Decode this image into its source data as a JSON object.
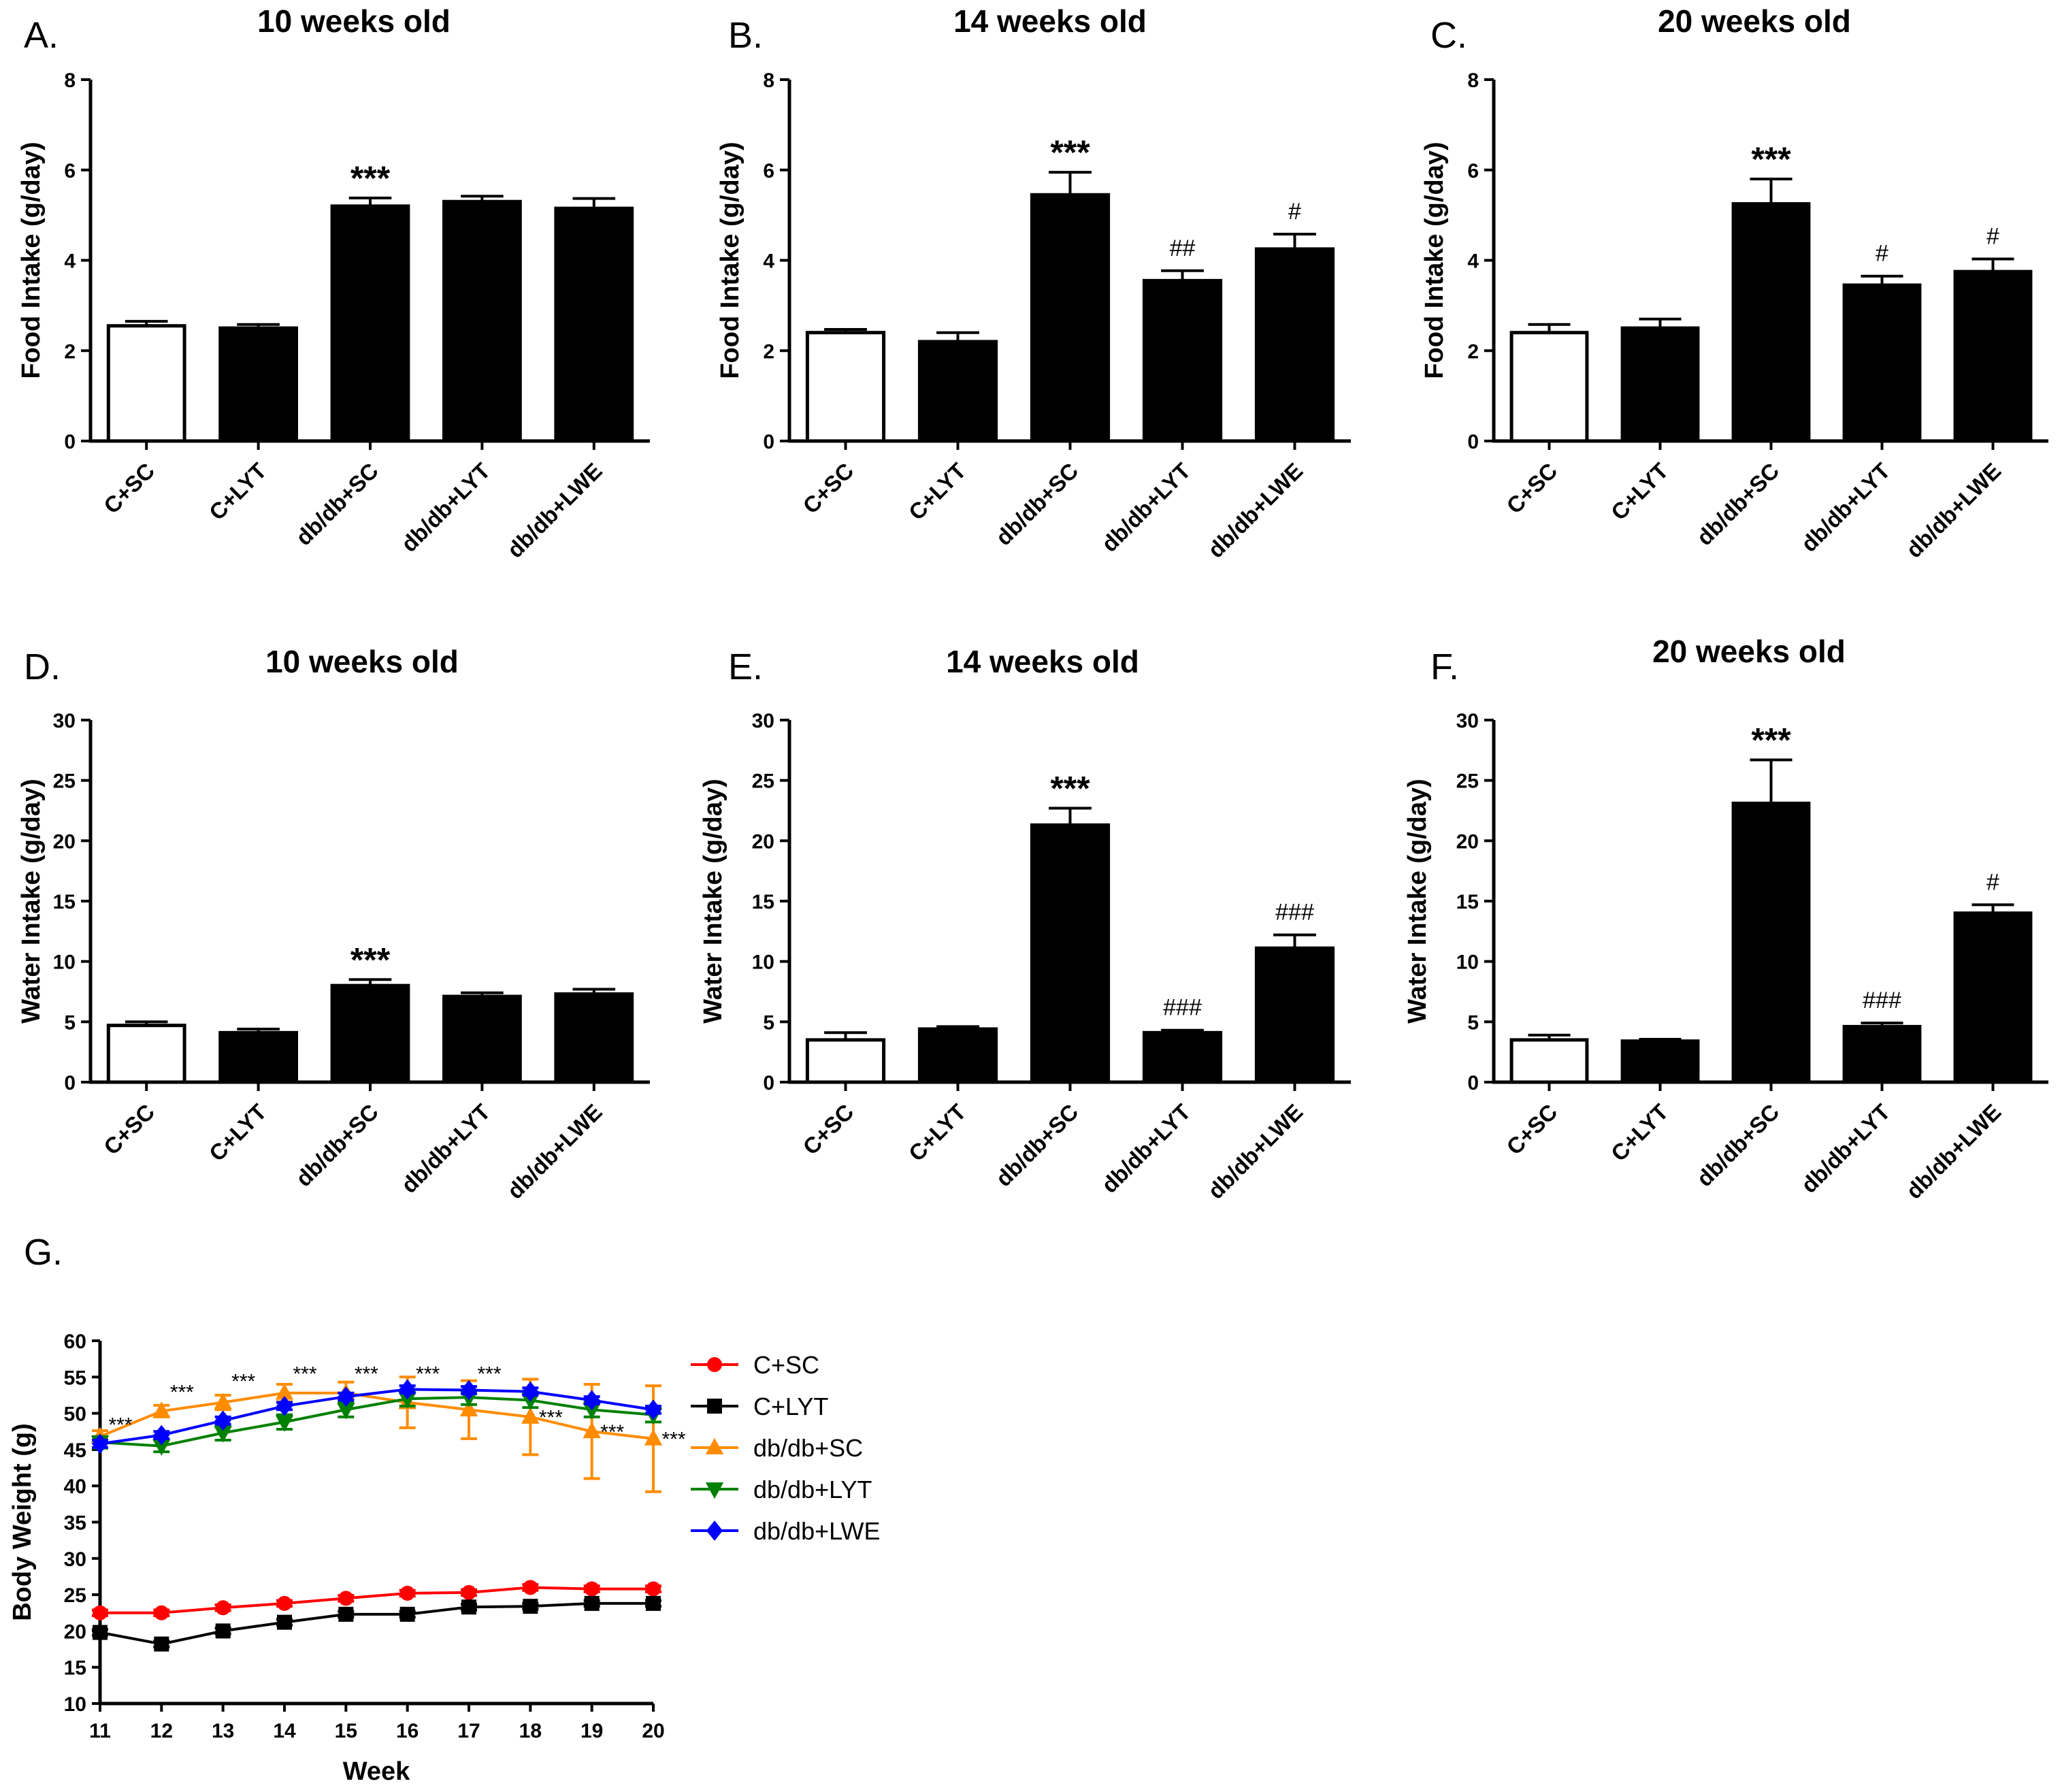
{
  "chart_data": [
    {
      "id": "A",
      "panel_label": "A.",
      "type": "bar",
      "title": "10 weeks old",
      "ylabel": "Food Intake (g/day)",
      "ylim": [
        0,
        8
      ],
      "yticks": [
        "0",
        "2",
        "4",
        "6",
        "8"
      ],
      "categories": [
        "C+SC",
        "C+LYT",
        "db/db+SC",
        "db/db+LYT",
        "db/db+LWE"
      ],
      "values": [
        2.55,
        2.5,
        5.2,
        5.3,
        5.15
      ],
      "errors": [
        0.1,
        0.08,
        0.18,
        0.12,
        0.22
      ],
      "fills": [
        "#ffffff",
        "#000000",
        "#000000",
        "#000000",
        "#000000"
      ],
      "annotations": [
        {
          "category_index": 2,
          "text": "***",
          "style": "sig"
        }
      ]
    },
    {
      "id": "B",
      "panel_label": "B.",
      "type": "bar",
      "title": "14 weeks old",
      "ylabel": "Food Intake (g/day)",
      "ylim": [
        0,
        8
      ],
      "yticks": [
        "0",
        "2",
        "4",
        "6",
        "8"
      ],
      "categories": [
        "C+SC",
        "C+LYT",
        "db/db+SC",
        "db/db+LYT",
        "db/db+LWE"
      ],
      "values": [
        2.4,
        2.2,
        5.45,
        3.55,
        4.25
      ],
      "errors": [
        0.07,
        0.2,
        0.5,
        0.22,
        0.33
      ],
      "fills": [
        "#ffffff",
        "#000000",
        "#000000",
        "#000000",
        "#000000"
      ],
      "annotations": [
        {
          "category_index": 2,
          "text": "***",
          "style": "sig"
        },
        {
          "category_index": 3,
          "text": "##",
          "style": "hash"
        },
        {
          "category_index": 4,
          "text": "#",
          "style": "hash"
        }
      ]
    },
    {
      "id": "C",
      "panel_label": "C.",
      "type": "bar",
      "title": "20 weeks old",
      "ylabel": "Food Intake (g/day)",
      "ylim": [
        0,
        8
      ],
      "yticks": [
        "0",
        "2",
        "4",
        "6",
        "8"
      ],
      "categories": [
        "C+SC",
        "C+LYT",
        "db/db+SC",
        "db/db+LYT",
        "db/db+LWE"
      ],
      "values": [
        2.4,
        2.5,
        5.25,
        3.45,
        3.75
      ],
      "errors": [
        0.18,
        0.2,
        0.55,
        0.2,
        0.28
      ],
      "fills": [
        "#ffffff",
        "#000000",
        "#000000",
        "#000000",
        "#000000"
      ],
      "annotations": [
        {
          "category_index": 2,
          "text": "***",
          "style": "sig"
        },
        {
          "category_index": 3,
          "text": "#",
          "style": "hash"
        },
        {
          "category_index": 4,
          "text": "#",
          "style": "hash"
        }
      ]
    },
    {
      "id": "D",
      "panel_label": "D.",
      "type": "bar",
      "title": "10 weeks old",
      "ylabel": "Water Intake (g/day)",
      "ylim": [
        0,
        30
      ],
      "yticks": [
        "0",
        "5",
        "10",
        "15",
        "20",
        "25",
        "30"
      ],
      "categories": [
        "C+SC",
        "C+LYT",
        "db/db+SC",
        "db/db+LYT",
        "db/db+LWE"
      ],
      "values": [
        4.7,
        4.1,
        8.0,
        7.1,
        7.3
      ],
      "errors": [
        0.3,
        0.3,
        0.5,
        0.3,
        0.4
      ],
      "fills": [
        "#ffffff",
        "#000000",
        "#000000",
        "#000000",
        "#000000"
      ],
      "annotations": [
        {
          "category_index": 2,
          "text": "***",
          "style": "sig"
        }
      ]
    },
    {
      "id": "E",
      "panel_label": "E.",
      "type": "bar",
      "title": "14 weeks old",
      "ylabel": "Water Intake (g/day)",
      "ylim": [
        0,
        30
      ],
      "yticks": [
        "0",
        "5",
        "10",
        "15",
        "20",
        "25",
        "30"
      ],
      "categories": [
        "C+SC",
        "C+LYT",
        "db/db+SC",
        "db/db+LYT",
        "db/db+LWE"
      ],
      "values": [
        3.5,
        4.4,
        21.3,
        4.1,
        11.1
      ],
      "errors": [
        0.6,
        0.2,
        1.4,
        0.2,
        1.1
      ],
      "fills": [
        "#ffffff",
        "#000000",
        "#000000",
        "#000000",
        "#000000"
      ],
      "annotations": [
        {
          "category_index": 2,
          "text": "***",
          "style": "sig"
        },
        {
          "category_index": 3,
          "text": "###",
          "style": "hash"
        },
        {
          "category_index": 4,
          "text": "###",
          "style": "hash"
        }
      ]
    },
    {
      "id": "F",
      "panel_label": "F.",
      "type": "bar",
      "title": "20 weeks old",
      "ylabel": "Water Intake (g/day)",
      "ylim": [
        0,
        30
      ],
      "yticks": [
        "0",
        "5",
        "10",
        "15",
        "20",
        "25",
        "30"
      ],
      "categories": [
        "C+SC",
        "C+LYT",
        "db/db+SC",
        "db/db+LYT",
        "db/db+LWE"
      ],
      "values": [
        3.5,
        3.4,
        23.1,
        4.6,
        14.0
      ],
      "errors": [
        0.4,
        0.15,
        3.6,
        0.3,
        0.7
      ],
      "fills": [
        "#ffffff",
        "#000000",
        "#000000",
        "#000000",
        "#000000"
      ],
      "annotations": [
        {
          "category_index": 2,
          "text": "***",
          "style": "sig"
        },
        {
          "category_index": 3,
          "text": "###",
          "style": "hash"
        },
        {
          "category_index": 4,
          "text": "#",
          "style": "hash"
        }
      ]
    },
    {
      "id": "G",
      "panel_label": "G.",
      "type": "line",
      "title": "",
      "xlabel": "Week",
      "ylabel": "Body Weight (g)",
      "xlim": [
        11,
        20
      ],
      "ylim": [
        10,
        60
      ],
      "x": [
        11,
        12,
        13,
        14,
        15,
        16,
        17,
        18,
        19,
        20
      ],
      "xticks": [
        "11",
        "12",
        "13",
        "14",
        "15",
        "16",
        "17",
        "18",
        "19",
        "20"
      ],
      "yticks": [
        "10",
        "15",
        "20",
        "25",
        "30",
        "35",
        "40",
        "45",
        "50",
        "55",
        "60"
      ],
      "legend_position": "right",
      "series": [
        {
          "name": "C+SC",
          "color": "#ff0000",
          "marker": "circle",
          "values": [
            22.5,
            22.5,
            23.2,
            23.8,
            24.5,
            25.2,
            25.3,
            26.0,
            25.8,
            25.8
          ],
          "errors": [
            0.4,
            0.4,
            0.4,
            0.4,
            0.4,
            0.4,
            0.4,
            0.4,
            0.4,
            0.4
          ]
        },
        {
          "name": "C+LYT",
          "color": "#000000",
          "marker": "square",
          "values": [
            19.8,
            18.2,
            20.0,
            21.2,
            22.3,
            22.3,
            23.3,
            23.4,
            23.8,
            23.8
          ],
          "errors": [
            0.4,
            0.4,
            0.4,
            0.4,
            0.4,
            0.4,
            0.4,
            0.4,
            0.4,
            0.4
          ]
        },
        {
          "name": "db/db+SC",
          "color": "#ff8c00",
          "marker": "triangle-up",
          "values": [
            46.8,
            50.3,
            51.5,
            52.8,
            52.8,
            51.5,
            50.5,
            49.5,
            47.5,
            46.5
          ],
          "errors": [
            0.8,
            0.8,
            1.0,
            1.2,
            1.5,
            3.5,
            4.0,
            5.2,
            6.5,
            7.3
          ]
        },
        {
          "name": "db/db+LYT",
          "color": "#008000",
          "marker": "triangle-down",
          "values": [
            46.0,
            45.5,
            47.3,
            48.8,
            50.5,
            52.0,
            52.2,
            51.8,
            50.5,
            49.8
          ],
          "errors": [
            0.8,
            0.8,
            1.0,
            1.0,
            1.0,
            1.0,
            1.0,
            1.0,
            1.0,
            1.0
          ]
        },
        {
          "name": "db/db+LWE",
          "color": "#0000ff",
          "marker": "diamond",
          "values": [
            45.8,
            47.0,
            49.0,
            51.0,
            52.3,
            53.3,
            53.2,
            53.0,
            51.8,
            50.5
          ],
          "errors": [
            0.5,
            0.5,
            0.5,
            0.5,
            0.5,
            0.5,
            0.5,
            0.5,
            0.5,
            0.5
          ]
        }
      ],
      "annotations": [
        {
          "x": 11,
          "y": 47.5,
          "text": "***"
        },
        {
          "x": 12,
          "y": 52.0,
          "text": "***"
        },
        {
          "x": 13,
          "y": 53.5,
          "text": "***"
        },
        {
          "x": 14,
          "y": 54.5,
          "text": "***"
        },
        {
          "x": 15,
          "y": 54.5,
          "text": "***"
        },
        {
          "x": 16,
          "y": 54.5,
          "text": "***"
        },
        {
          "x": 17,
          "y": 54.5,
          "text": "***"
        },
        {
          "x": 18,
          "y": 48.5,
          "text": "***"
        },
        {
          "x": 19,
          "y": 46.5,
          "text": "***"
        },
        {
          "x": 20,
          "y": 45.5,
          "text": "***"
        }
      ]
    }
  ]
}
